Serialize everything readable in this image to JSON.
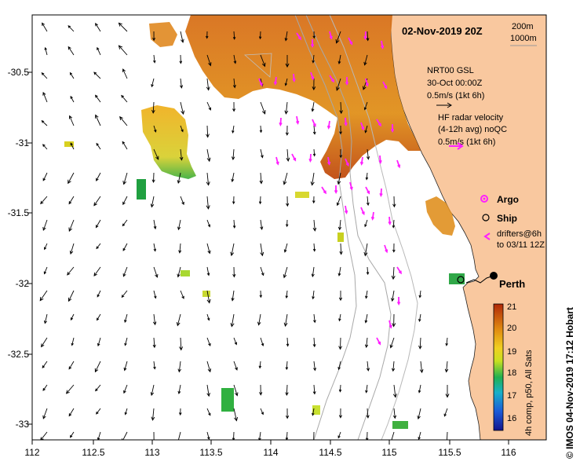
{
  "title": "02-Nov-2019 20Z",
  "scale_legend": {
    "line1": "200m",
    "line2": "1000m"
  },
  "model_legend": {
    "line1": "NRT00 GSL",
    "line2": "30-Oct 00:00Z",
    "line3": "0.5m/s (1kt 6h)"
  },
  "radar_legend": {
    "line1": "HF radar velocity",
    "line2": "(4-12h avg) noQC",
    "line3": "0.5m/s (1kt 6h)"
  },
  "argo_label": "Argo",
  "ship_label": "Ship",
  "drifters_label": {
    "line1": "drifters@6h",
    "line2": "to 03/11 12Z"
  },
  "city_label": "Perth",
  "colorbar": {
    "ticks": [
      "21",
      "20",
      "19",
      "18",
      "17",
      "16"
    ],
    "caption": "4h comp, p50, All Sats"
  },
  "credit": "© IMOS 04-Nov-2019 17:12 Hobart",
  "axes": {
    "x_ticks": [
      "112",
      "112.5",
      "113",
      "113.5",
      "114",
      "114.5",
      "115",
      "115.5",
      "116"
    ],
    "y_ticks": [
      "-30.5",
      "-31",
      "-31.5",
      "-32",
      "-32.5",
      "-33"
    ]
  },
  "colors": {
    "land": "#f9c89f",
    "vector_magenta": "#ff20ff",
    "sst_warm": "#e07a10",
    "sst_cool": "#2aa040"
  }
}
